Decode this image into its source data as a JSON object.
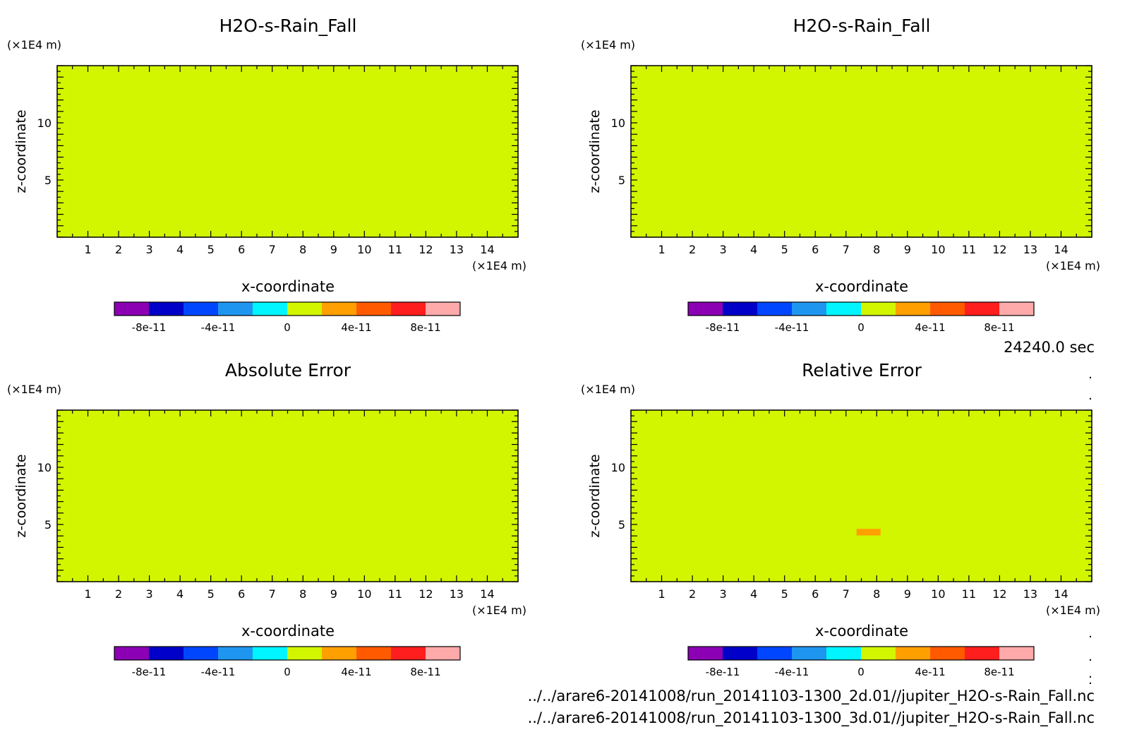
{
  "colors": {
    "levels": [
      "#8c00b4",
      "#0000c8",
      "#0046ff",
      "#1e96f0",
      "#00f5ff",
      "#d2f500",
      "#ffa000",
      "#ff5a00",
      "#ff1e1e",
      "#ffaaaa"
    ],
    "frame": "#000000"
  },
  "colorbar": {
    "tick_labels": [
      "-8e-11",
      "-4e-11",
      "0",
      "4e-11",
      "8e-11"
    ],
    "tick_values": [
      -8e-11,
      -4e-11,
      0,
      4e-11,
      8e-11
    ],
    "range": [
      -1e-10,
      1e-10
    ],
    "step": 2e-11
  },
  "time_label": "24240.0 sec",
  "dots_top": [
    ".",
    "."
  ],
  "dots_bottom": [
    ".",
    ".",
    ".",
    ".",
    "."
  ],
  "file_paths": [
    "../../arare6-20141008/run_20141103-1300_2d.01//jupiter_H2O-s-Rain_Fall.nc",
    "../../arare6-20141008/run_20141103-1300_3d.01//jupiter_H2O-s-Rain_Fall.nc"
  ],
  "chart_data": [
    {
      "type": "heatmap",
      "title": "H2O-s-Rain_Fall",
      "xlabel": "x-coordinate",
      "ylabel": "z-coordinate",
      "x_unit": "(×1E4 m)",
      "y_unit": "(×1E4 m)",
      "xlim": [
        0,
        15
      ],
      "ylim": [
        0,
        15
      ],
      "x_ticks": [
        "1",
        "2",
        "3",
        "4",
        "5",
        "6",
        "7",
        "8",
        "9",
        "10",
        "11",
        "12",
        "13",
        "14"
      ],
      "y_ticks": [
        "5",
        "10"
      ],
      "field": "banded",
      "top_uniform_above": 11.2,
      "value_range": [
        -2e-11,
        2e-11
      ]
    },
    {
      "type": "heatmap",
      "title": "H2O-s-Rain_Fall",
      "xlabel": "x-coordinate",
      "ylabel": "z-coordinate",
      "x_unit": "(×1E4 m)",
      "y_unit": "(×1E4 m)",
      "xlim": [
        0,
        15
      ],
      "ylim": [
        0,
        15
      ],
      "x_ticks": [
        "1",
        "2",
        "3",
        "4",
        "5",
        "6",
        "7",
        "8",
        "9",
        "10",
        "11",
        "12",
        "13",
        "14"
      ],
      "y_ticks": [
        "5",
        "10"
      ],
      "field": "banded",
      "top_uniform_above": 11.2,
      "value_range": [
        -2e-11,
        2e-11
      ]
    },
    {
      "type": "heatmap",
      "title": "Absolute Error",
      "xlabel": "x-coordinate",
      "ylabel": "z-coordinate",
      "x_unit": "(×1E4 m)",
      "y_unit": "(×1E4 m)",
      "xlim": [
        0,
        15
      ],
      "ylim": [
        0,
        15
      ],
      "x_ticks": [
        "1",
        "2",
        "3",
        "4",
        "5",
        "6",
        "7",
        "8",
        "9",
        "10",
        "11",
        "12",
        "13",
        "14"
      ],
      "y_ticks": [
        "5",
        "10"
      ],
      "field": "error",
      "value_range": [
        -2e-11,
        2e-11
      ]
    },
    {
      "type": "heatmap",
      "title": "Relative Error",
      "xlabel": "x-coordinate",
      "ylabel": "z-coordinate",
      "x_unit": "(×1E4 m)",
      "y_unit": "(×1E4 m)",
      "xlim": [
        0,
        15
      ],
      "ylim": [
        0,
        15
      ],
      "x_ticks": [
        "1",
        "2",
        "3",
        "4",
        "5",
        "6",
        "7",
        "8",
        "9",
        "10",
        "11",
        "12",
        "13",
        "14"
      ],
      "y_ticks": [
        "5",
        "10"
      ],
      "field": "relative",
      "value_range": [
        -2e-11,
        4e-11
      ]
    }
  ]
}
